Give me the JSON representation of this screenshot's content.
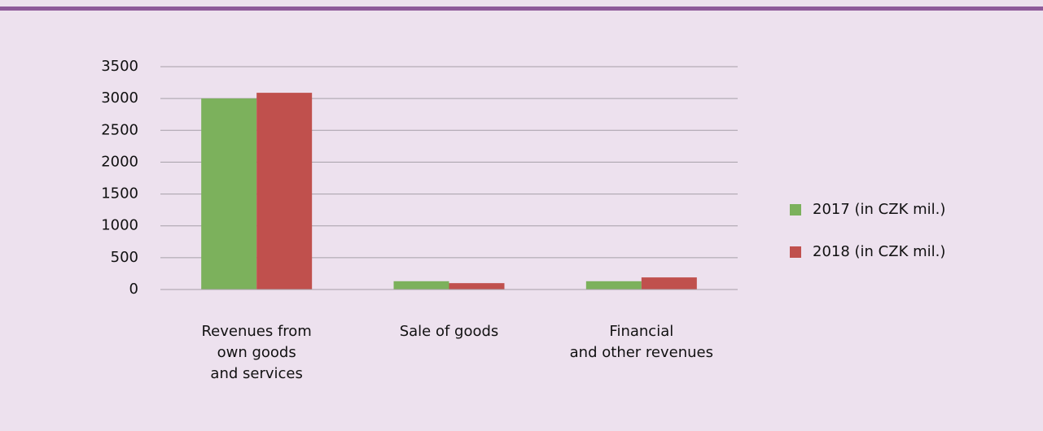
{
  "chart_data": {
    "type": "bar",
    "categories": [
      "Revenues from\nown goods\nand services",
      "Sale of goods",
      "Financial\nand other revenues"
    ],
    "series": [
      {
        "name": "2017 (in CZK mil.)",
        "color": "#7cb15c",
        "values": [
          3000,
          130,
          130
        ]
      },
      {
        "name": "2018 (in CZK mil.)",
        "color": "#c0504d",
        "values": [
          3090,
          100,
          190
        ]
      }
    ],
    "ylim": [
      0,
      3500
    ],
    "yticks": [
      0,
      500,
      1000,
      1500,
      2000,
      2500,
      3000,
      3500
    ],
    "grid": true,
    "legend": "right"
  }
}
